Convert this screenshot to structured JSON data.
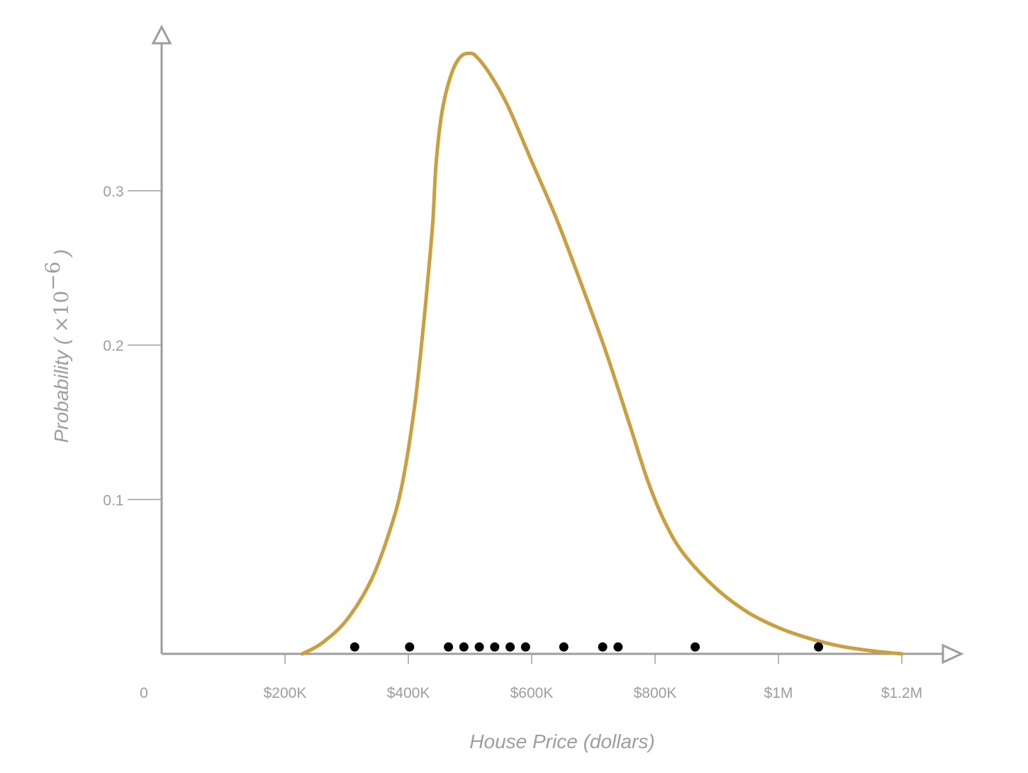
{
  "chart_data": {
    "type": "line",
    "xlabel": "House Price (dollars)",
    "ylabel_text": "Probability ( ",
    "ylabel_math": "×10",
    "ylabel_exponent": "−6",
    "ylabel_close": " )",
    "xlim": [
      0,
      1290000
    ],
    "ylim": [
      0,
      0.39
    ],
    "x_ticks": [
      {
        "value": 0,
        "label": "0"
      },
      {
        "value": 200000,
        "label": "$200K"
      },
      {
        "value": 400000,
        "label": "$400K"
      },
      {
        "value": 600000,
        "label": "$600K"
      },
      {
        "value": 800000,
        "label": "$800K"
      },
      {
        "value": 1000000,
        "label": "$1M"
      },
      {
        "value": 1200000,
        "label": "$1.2M"
      }
    ],
    "y_ticks": [
      {
        "value": 0.1,
        "label": "0.1"
      },
      {
        "value": 0.2,
        "label": "0.2"
      },
      {
        "value": 0.3,
        "label": "0.3"
      }
    ],
    "series": [
      {
        "kind": "density-curve",
        "color": "#cc9f3b",
        "x": [
          228000,
          260000,
          300000,
          340000,
          370000,
          390000,
          410000,
          425000,
          435000,
          440000,
          445000,
          455000,
          470000,
          485000,
          500000,
          510000,
          530000,
          560000,
          600000,
          640000,
          680000,
          720000,
          760000,
          790000,
          820000,
          850000,
          900000,
          950000,
          1000000,
          1050000,
          1100000,
          1150000,
          1200000
        ],
        "y": [
          0.0,
          0.007,
          0.022,
          0.048,
          0.08,
          0.11,
          0.16,
          0.215,
          0.258,
          0.282,
          0.318,
          0.352,
          0.376,
          0.387,
          0.389,
          0.387,
          0.377,
          0.356,
          0.319,
          0.282,
          0.24,
          0.196,
          0.147,
          0.11,
          0.082,
          0.063,
          0.042,
          0.027,
          0.017,
          0.01,
          0.005,
          0.002,
          0.0
        ]
      },
      {
        "kind": "observations",
        "color": "#000000",
        "x": [
          313000,
          402000,
          465000,
          490000,
          515000,
          540000,
          565000,
          590000,
          652000,
          715000,
          740000,
          865000,
          1065000
        ],
        "y": [
          0.004,
          0.004,
          0.004,
          0.004,
          0.004,
          0.004,
          0.004,
          0.004,
          0.004,
          0.004,
          0.004,
          0.004,
          0.004
        ]
      }
    ]
  }
}
